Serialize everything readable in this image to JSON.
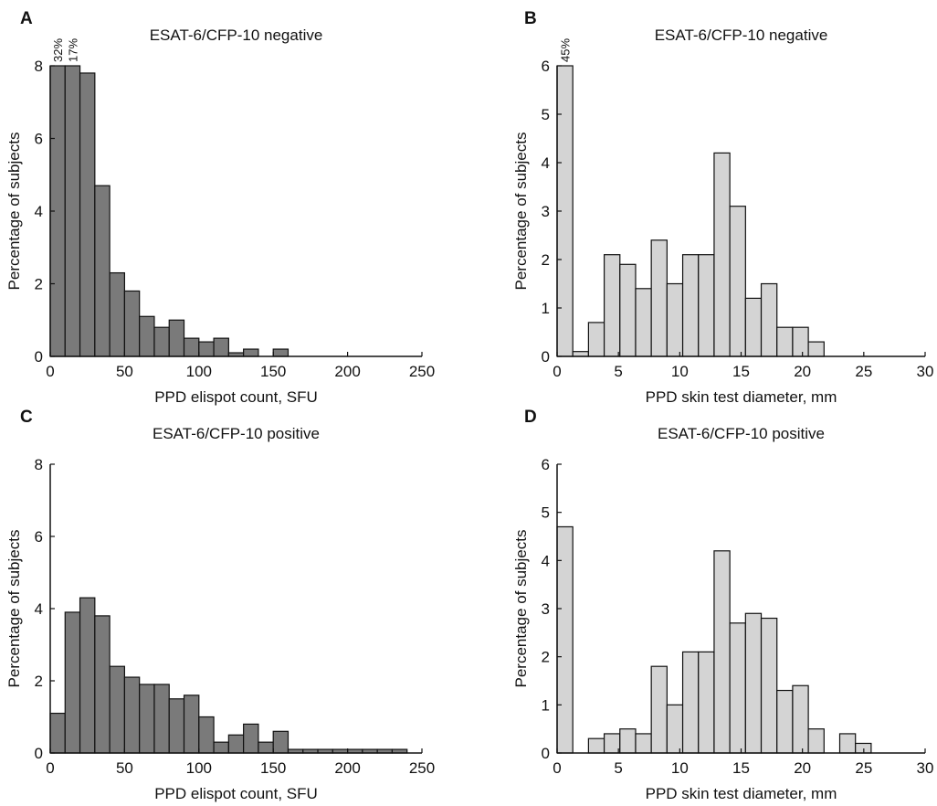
{
  "figure": {
    "background": "#ffffff"
  },
  "chart_data": [
    {
      "panel": "A",
      "type": "bar",
      "title": "ESAT-6/CFP-10 negative",
      "xlabel": "PPD elispot count, SFU",
      "ylabel": "Percentage of subjects",
      "xlim": [
        0,
        250
      ],
      "ylim": [
        0,
        8
      ],
      "xticks": [
        0,
        50,
        100,
        150,
        200,
        250
      ],
      "yticks": [
        0,
        2,
        4,
        6,
        8
      ],
      "bin_width": 10,
      "bin_starts": [
        0,
        10,
        20,
        30,
        40,
        50,
        60,
        70,
        80,
        90,
        100,
        110,
        120,
        130,
        140,
        150
      ],
      "values": [
        8,
        8,
        7.8,
        4.7,
        2.3,
        1.8,
        1.1,
        0.8,
        1.0,
        0.5,
        0.4,
        0.5,
        0.1,
        0.2,
        0,
        0.2
      ],
      "bar_color": "#7a7a7a",
      "annotations": [
        {
          "text": "32%",
          "bin": 0
        },
        {
          "text": "17%",
          "bin": 1
        }
      ]
    },
    {
      "panel": "B",
      "type": "bar",
      "title": "ESAT-6/CFP-10 negative",
      "xlabel": "PPD skin test diameter, mm",
      "ylabel": "Percentage of subjects",
      "xlim": [
        0,
        30
      ],
      "ylim": [
        0,
        6
      ],
      "xticks": [
        0,
        5,
        10,
        15,
        20,
        25,
        30
      ],
      "yticks": [
        0,
        1,
        2,
        3,
        4,
        5,
        6
      ],
      "bin_width": 1.28,
      "bin_starts": [
        0,
        1.28,
        2.56,
        3.84,
        5.12,
        6.4,
        7.68,
        8.96,
        10.24,
        11.52,
        12.8,
        14.08,
        15.36,
        16.64,
        17.92,
        19.2,
        20.48,
        21.76,
        23.04,
        24.32
      ],
      "values": [
        6,
        0.1,
        0.7,
        2.1,
        1.9,
        1.4,
        2.4,
        1.5,
        2.1,
        2.1,
        4.2,
        3.1,
        1.2,
        1.5,
        0.6,
        0.6,
        0.3,
        0,
        0,
        0
      ],
      "bar_color": "#d4d4d4",
      "annotations": [
        {
          "text": "45%",
          "bin": 0
        }
      ]
    },
    {
      "panel": "C",
      "type": "bar",
      "title": "ESAT-6/CFP-10 positive",
      "xlabel": "PPD elispot count, SFU",
      "ylabel": "Percentage of subjects",
      "xlim": [
        0,
        250
      ],
      "ylim": [
        0,
        8
      ],
      "xticks": [
        0,
        50,
        100,
        150,
        200,
        250
      ],
      "yticks": [
        0,
        2,
        4,
        6,
        8
      ],
      "bin_width": 10,
      "bin_starts": [
        0,
        10,
        20,
        30,
        40,
        50,
        60,
        70,
        80,
        90,
        100,
        110,
        120,
        130,
        140,
        150,
        160,
        170,
        180,
        190,
        200,
        210,
        220,
        230
      ],
      "values": [
        1.1,
        3.9,
        4.3,
        3.8,
        2.4,
        2.1,
        1.9,
        1.9,
        1.5,
        1.6,
        1.0,
        0.3,
        0.5,
        0.8,
        0.3,
        0.6,
        0.1,
        0.1,
        0.1,
        0.1,
        0.1,
        0.1,
        0.1,
        0.1
      ],
      "bar_color": "#7a7a7a",
      "annotations": []
    },
    {
      "panel": "D",
      "type": "bar",
      "title": "ESAT-6/CFP-10 positive",
      "xlabel": "PPD skin test diameter, mm",
      "ylabel": "Percentage of subjects",
      "xlim": [
        0,
        30
      ],
      "ylim": [
        0,
        6
      ],
      "xticks": [
        0,
        5,
        10,
        15,
        20,
        25,
        30
      ],
      "yticks": [
        0,
        1,
        2,
        3,
        4,
        5,
        6
      ],
      "bin_width": 1.28,
      "bin_starts": [
        0,
        1.28,
        2.56,
        3.84,
        5.12,
        6.4,
        7.68,
        8.96,
        10.24,
        11.52,
        12.8,
        14.08,
        15.36,
        16.64,
        17.92,
        19.2,
        20.48,
        21.76,
        23.04,
        24.32,
        25.6,
        26.88,
        28.16
      ],
      "values": [
        4.7,
        0,
        0.3,
        0.4,
        0.5,
        0.4,
        1.8,
        1.0,
        2.1,
        2.1,
        4.2,
        2.7,
        2.9,
        2.8,
        1.3,
        1.4,
        0.5,
        0,
        0.4,
        0.2,
        0,
        0,
        0
      ],
      "bar_color": "#d4d4d4",
      "annotations": []
    }
  ]
}
